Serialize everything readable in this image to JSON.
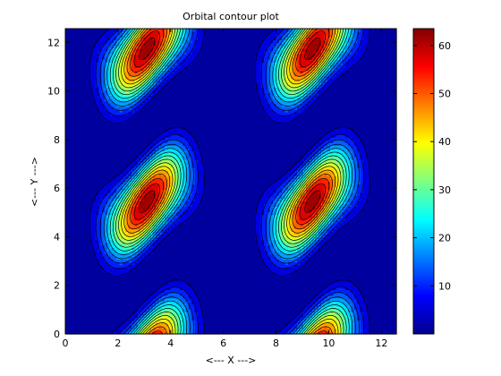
{
  "chart_data": {
    "type": "contour",
    "title": "Orbital contour plot",
    "xlabel": "<--- X --->",
    "ylabel": "<--- Y --->",
    "xlim": [
      0,
      12.566
    ],
    "ylim": [
      0,
      12.566
    ],
    "xticks": [
      0,
      2,
      4,
      6,
      8,
      10,
      12
    ],
    "yticks": [
      0,
      2,
      4,
      6,
      8,
      10,
      12
    ],
    "colorbar": {
      "lim": [
        0,
        63.5
      ],
      "ticks": [
        10,
        20,
        30,
        40,
        50,
        60
      ]
    },
    "colormap": "jet",
    "contour_levels": 16,
    "peaks": [
      {
        "x": 3.1,
        "y": 11.6,
        "value": 62
      },
      {
        "x": 9.3,
        "y": 11.6,
        "value": 62
      },
      {
        "x": 3.1,
        "y": 5.4,
        "value": 62
      },
      {
        "x": 9.3,
        "y": 5.4,
        "value": 62
      }
    ]
  }
}
